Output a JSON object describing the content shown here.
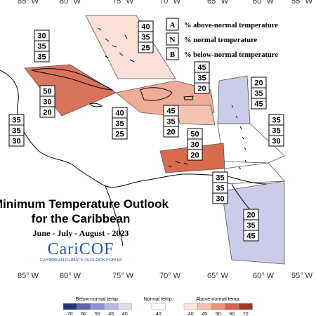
{
  "longitudes": [
    "85° W",
    "80° W",
    "75° W",
    "70° W",
    "65° W",
    "60° W",
    "55° W"
  ],
  "legend": [
    {
      "key": "A",
      "text": "% above-normal temperature"
    },
    {
      "key": "N",
      "text": "% normal temperature"
    },
    {
      "key": "B",
      "text": "% below-normal temperature"
    }
  ],
  "title": "Minimum Temperature Outlook",
  "subtitle": "for the Caribbean",
  "period": "June - July - August - 2023",
  "logo": {
    "name": "CariCOF",
    "tagline": "CARIBBEAN CLIMATE OUTLOOK FORUM"
  },
  "regions": [
    {
      "probs": [
        40,
        35,
        25
      ],
      "color": "#fae0d6"
    },
    {
      "probs": [
        30,
        35,
        35
      ]
    },
    {
      "probs": [
        50,
        30,
        20
      ],
      "color": "#d9745c"
    },
    {
      "probs": [
        45,
        35,
        20
      ],
      "color": "#efad97"
    },
    {
      "probs": [
        40,
        35,
        25
      ]
    },
    {
      "probs": [
        45,
        35,
        20
      ],
      "color": "#f3c3b3"
    },
    {
      "probs": [
        20,
        35,
        45
      ],
      "color": "#cbcbea"
    },
    {
      "probs": [
        35,
        35,
        30
      ]
    },
    {
      "probs": [
        35,
        35,
        30
      ]
    },
    {
      "probs": [
        50,
        30,
        20
      ],
      "color": "#d96a4e"
    },
    {
      "probs": [
        35,
        35,
        30
      ]
    },
    {
      "probs": [
        20,
        35,
        45
      ],
      "color": "#cbcbea"
    }
  ],
  "colorbar": {
    "below": {
      "label": "Below-normal temp.",
      "ticks": [
        70,
        60,
        50,
        45,
        40
      ]
    },
    "normal": {
      "label": "Normal temp.",
      "ticks": [
        40
      ]
    },
    "above": {
      "label": "Above-normal temp.",
      "ticks": [
        40,
        45,
        50,
        60,
        70
      ]
    }
  }
}
